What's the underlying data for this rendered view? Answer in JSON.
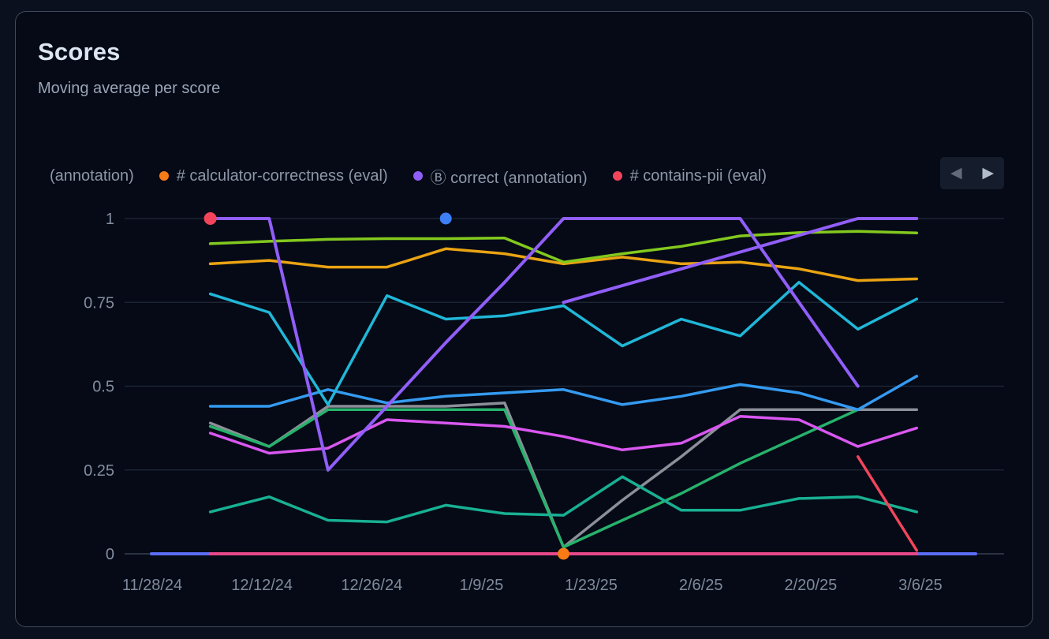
{
  "card": {
    "title": "Scores",
    "subtitle": "Moving average per score"
  },
  "legend": {
    "items": [
      {
        "label": "(annotation)",
        "color": null
      },
      {
        "label": "# calculator-correctness (eval)",
        "color": "#f97b16"
      },
      {
        "label": "Ⓑ correct (annotation)",
        "color": "#915ef8"
      },
      {
        "label": "# contains-pii (eval)",
        "color": "#f2455c"
      }
    ],
    "nav": {
      "prev_icon": "◀",
      "next_icon": "▶"
    }
  },
  "chart_data": {
    "type": "line",
    "title": "Scores",
    "subtitle": "Moving average per score",
    "ylim": [
      0,
      1
    ],
    "grid": "horizontal",
    "y_ticks": [
      {
        "label": "1",
        "value": 1
      },
      {
        "label": "0.75",
        "value": 0.75
      },
      {
        "label": "0.5",
        "value": 0.5
      },
      {
        "label": "0.25",
        "value": 0.25
      },
      {
        "label": "0",
        "value": 0
      }
    ],
    "x_ticks": [
      "11/28/24",
      "12/12/24",
      "12/26/24",
      "1/9/25",
      "1/23/25",
      "2/6/25",
      "2/20/25",
      "3/6/25"
    ],
    "point_count": 15,
    "series": [
      {
        "name": "indigo_baseline",
        "color": "#5b6cf5",
        "width": 4,
        "values": [
          0,
          0,
          0,
          0,
          0,
          0,
          0,
          0,
          0,
          0,
          0,
          0,
          0,
          0,
          0
        ]
      },
      {
        "name": "pink_baseline",
        "color": "#e8498a",
        "width": 4,
        "values": [
          null,
          0,
          0,
          0,
          0,
          0,
          0,
          0,
          0,
          0,
          0,
          0,
          0,
          0,
          null
        ]
      },
      {
        "name": "gray",
        "color": "#8b8f97",
        "width": 3.5,
        "values": [
          null,
          0.39,
          0.32,
          0.44,
          0.44,
          0.44,
          0.45,
          0.02,
          0.16,
          0.29,
          0.43,
          0.43,
          0.43,
          0.43,
          null
        ]
      },
      {
        "name": "green",
        "color": "#27b26c",
        "width": 3.5,
        "values": [
          null,
          0.38,
          0.32,
          0.43,
          0.43,
          0.43,
          0.43,
          0.02,
          0.1,
          0.18,
          0.27,
          0.35,
          0.43,
          null,
          null
        ]
      },
      {
        "name": "teal",
        "color": "#18b093",
        "width": 3.5,
        "values": [
          null,
          0.125,
          0.17,
          0.1,
          0.095,
          0.145,
          0.12,
          0.115,
          0.23,
          0.13,
          0.13,
          0.165,
          0.17,
          0.125,
          null
        ]
      },
      {
        "name": "magenta",
        "color": "#d957f0",
        "width": 3.5,
        "values": [
          null,
          0.36,
          0.3,
          0.315,
          0.4,
          0.39,
          0.38,
          0.35,
          0.31,
          0.33,
          0.41,
          0.4,
          0.32,
          0.375,
          null
        ]
      },
      {
        "name": "blue",
        "color": "#359af0",
        "width": 3.5,
        "values": [
          null,
          0.44,
          0.44,
          0.49,
          0.45,
          0.47,
          0.48,
          0.49,
          0.445,
          0.47,
          0.505,
          0.48,
          0.43,
          0.53,
          null
        ]
      },
      {
        "name": "cyan",
        "color": "#20b7d8",
        "width": 3.5,
        "values": [
          null,
          0.775,
          0.72,
          0.445,
          0.77,
          0.7,
          0.71,
          0.74,
          0.62,
          0.7,
          0.65,
          0.81,
          0.67,
          0.76,
          null
        ]
      },
      {
        "name": "amber",
        "color": "#eaa313",
        "width": 3.5,
        "values": [
          null,
          0.865,
          0.875,
          0.855,
          0.855,
          0.91,
          0.895,
          0.865,
          0.885,
          0.865,
          0.87,
          0.85,
          0.815,
          0.82,
          null
        ]
      },
      {
        "name": "lime",
        "color": "#83c91e",
        "width": 3.5,
        "values": [
          null,
          0.925,
          0.932,
          0.938,
          0.94,
          0.94,
          0.942,
          0.87,
          0.895,
          0.917,
          0.948,
          0.958,
          0.962,
          0.957,
          null
        ]
      },
      {
        "name": "purple_rising",
        "color": "#915ef8",
        "width": 4,
        "values": [
          null,
          null,
          null,
          null,
          null,
          null,
          null,
          0.75,
          0.8,
          0.85,
          0.9,
          0.95,
          1,
          1,
          null
        ]
      },
      {
        "name": "correct",
        "legend_label": "Ⓑ correct (annotation)",
        "color": "#915ef8",
        "width": 4,
        "values": [
          null,
          1,
          1,
          0.25,
          0.44,
          0.63,
          0.81,
          1,
          1,
          1,
          1,
          0.75,
          0.5,
          null,
          null
        ]
      },
      {
        "name": "blue_point",
        "color": "#3d7ff5",
        "width": 3.5,
        "marker_r": 7.5,
        "values": [
          null,
          null,
          null,
          null,
          null,
          1,
          null,
          null,
          null,
          null,
          null,
          null,
          null,
          null,
          null
        ]
      },
      {
        "name": "calculator_correctness",
        "legend_label": "# calculator-correctness (eval)",
        "color": "#f97b16",
        "width": 3.5,
        "marker_r": 7.5,
        "values": [
          null,
          null,
          null,
          null,
          null,
          null,
          null,
          0,
          null,
          null,
          null,
          null,
          null,
          null,
          null
        ]
      },
      {
        "name": "contains_pii",
        "legend_label": "# contains-pii (eval)",
        "color": "#f2455c",
        "width": 3.5,
        "marker_r": 8,
        "values": [
          null,
          1,
          null,
          null,
          null,
          null,
          null,
          null,
          null,
          null,
          null,
          null,
          0.29,
          0.01,
          null
        ]
      }
    ]
  },
  "colors": {
    "page_bg": "#0a101e",
    "card_bg": "#050a16",
    "card_border": "#414a5c",
    "grid_line": "#212939",
    "axis_line": "#39414f",
    "y_label": "#848ea0",
    "x_label": "#7f8a9c",
    "legend_text": "#8d97a8",
    "title_text": "#dce6f2",
    "subtitle_text": "#9aa4b6"
  }
}
